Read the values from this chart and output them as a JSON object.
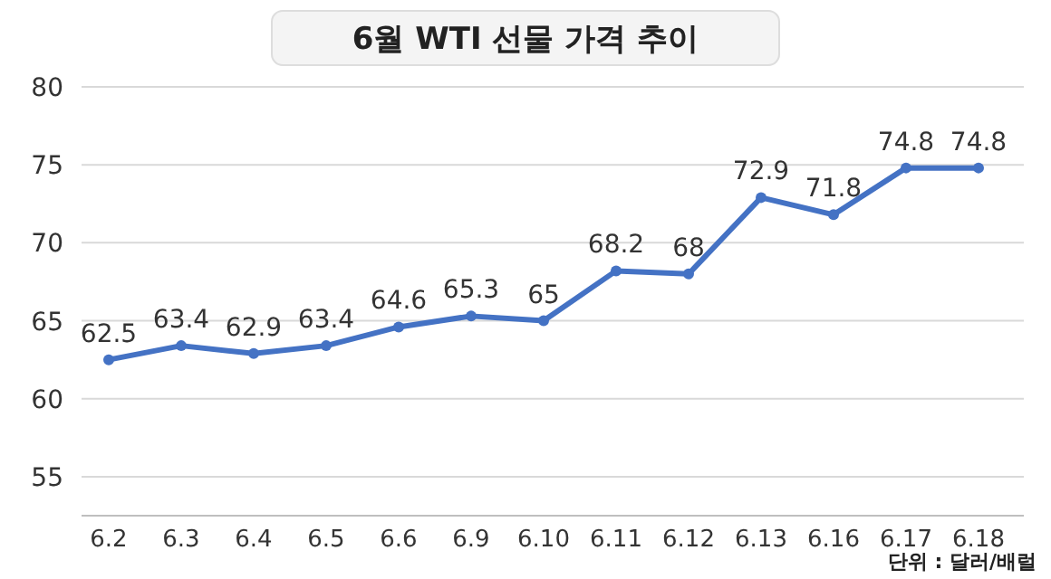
{
  "chart_data": {
    "type": "line",
    "title": "6월 WTI 선물 가격 추이",
    "categories": [
      "6.2",
      "6.3",
      "6.4",
      "6.5",
      "6.6",
      "6.9",
      "6.10",
      "6.11",
      "6.12",
      "6.13",
      "6.16",
      "6.17",
      "6.18"
    ],
    "series": [
      {
        "color": "#4472c4",
        "values": [
          62.5,
          63.4,
          62.9,
          63.4,
          64.6,
          65.3,
          65,
          68.2,
          68,
          72.9,
          71.8,
          74.8,
          74.8
        ]
      }
    ],
    "ylim": [
      52.5,
      80
    ],
    "yticks": [
      55,
      60,
      65,
      70,
      75,
      80
    ],
    "grid": "y",
    "marker": "circle",
    "line_style": "solid",
    "data_labels": true,
    "annotations": [
      "단위 : 달러/배럴"
    ]
  }
}
